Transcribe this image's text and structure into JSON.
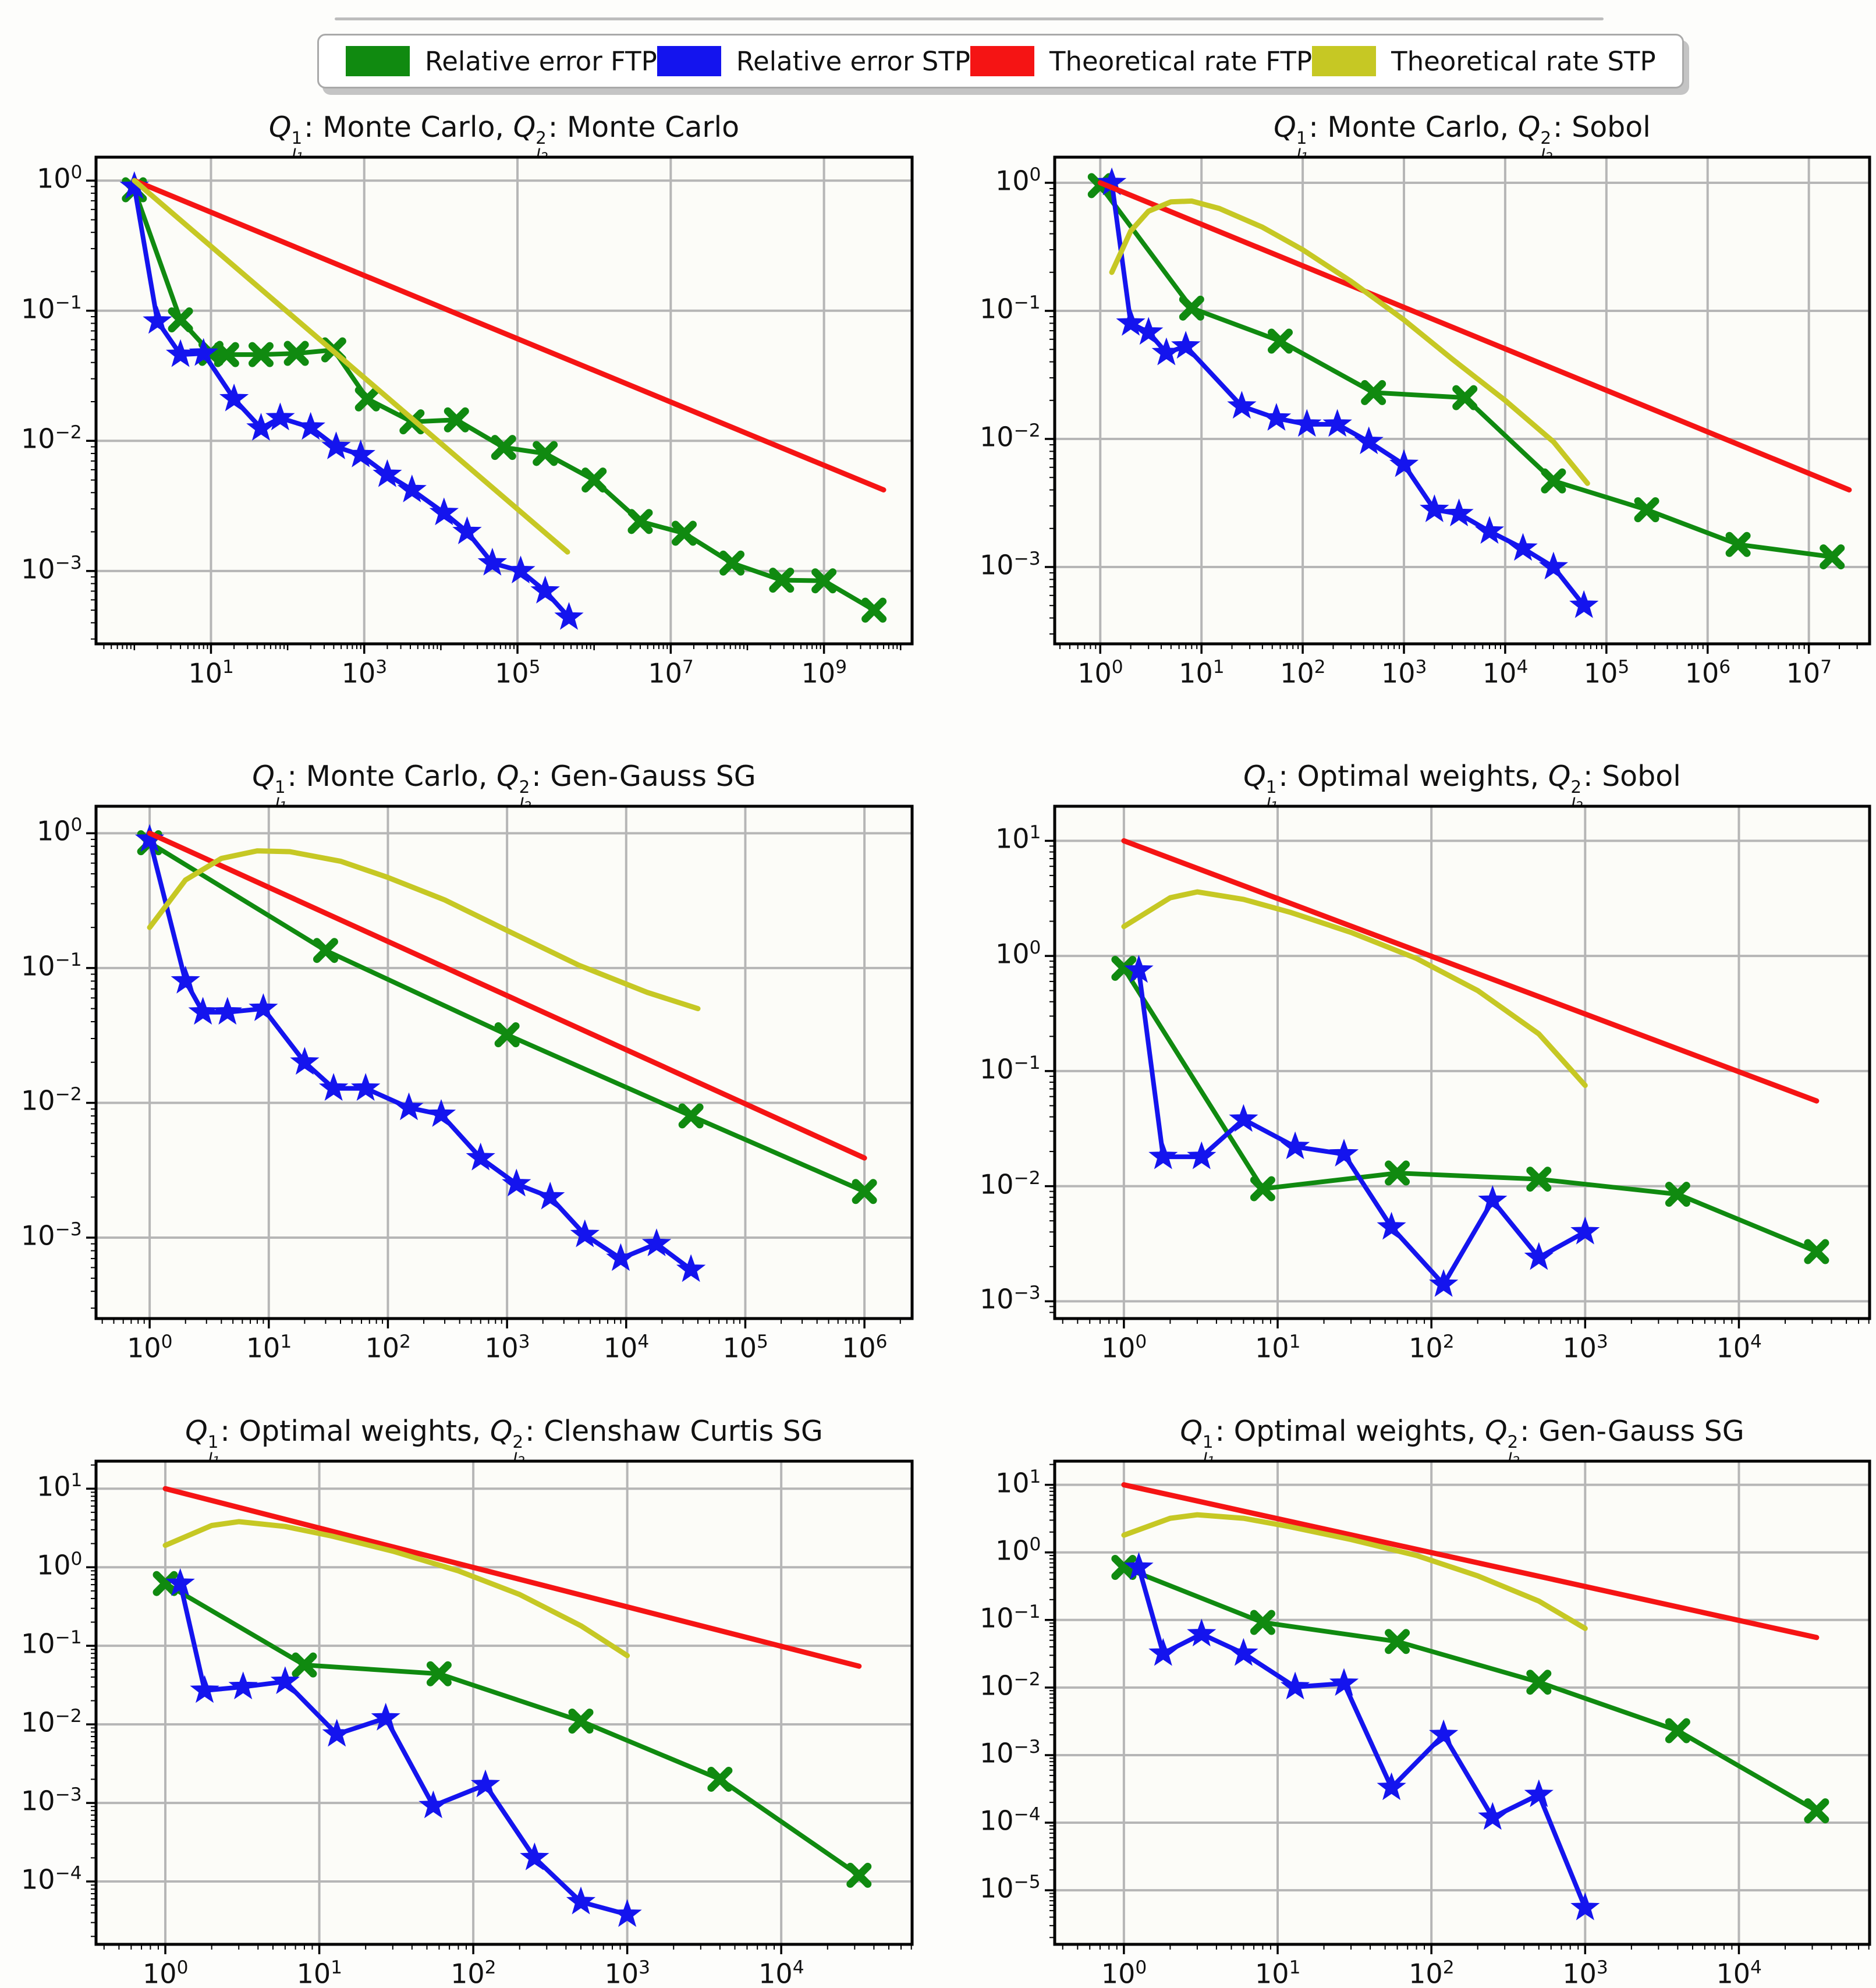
{
  "colors": {
    "green": "#108a10",
    "blue": "#1414ee",
    "red": "#f51414",
    "yellow": "#c6c824",
    "grid": "#b6b6b6",
    "frame": "#000000",
    "plot_bg": "#fcfcf8"
  },
  "legend": {
    "items": [
      {
        "label": "Relative error FTP",
        "color": "#108a10"
      },
      {
        "label": "Relative error STP",
        "color": "#1414ee"
      },
      {
        "label": "Theoretical rate FTP",
        "color": "#f51414"
      },
      {
        "label": "Theoretical rate STP",
        "color": "#c6c824"
      }
    ]
  },
  "chart_data": [
    {
      "type": "line",
      "title_plain": "Q^1_l1: Monte Carlo, Q^2_l2: Monte Carlo",
      "title_parts": [
        {
          "type": "qsym",
          "sup": "1",
          "sub": "l",
          "subidx": "1"
        },
        {
          "type": "text",
          "value": ": Monte Carlo, "
        },
        {
          "type": "qsym",
          "sup": "2",
          "sub": "l",
          "subidx": "2"
        },
        {
          "type": "text",
          "value": ": Monte Carlo"
        }
      ],
      "xlim_exp": [
        -0.5,
        10.15
      ],
      "ylim_exp": [
        -3.56,
        0.18
      ],
      "xticks_exp": [
        1,
        3,
        5,
        7,
        9
      ],
      "yticks_exp": [
        0,
        -1,
        -2,
        -3
      ],
      "grid": true,
      "legend_position": "figure-top",
      "series": [
        {
          "name": "Relative error FTP",
          "color_key": "green",
          "marker": "x",
          "x": [
            1,
            4,
            10,
            16,
            45,
            130,
            400,
            1100,
            4200,
            16000,
            66000,
            230000,
            1000000,
            4000000,
            15000000,
            63000000,
            280000000,
            1000000000,
            4500000000
          ],
          "y": [
            0.85,
            0.085,
            0.047,
            0.046,
            0.046,
            0.047,
            0.05,
            0.021,
            0.014,
            0.0145,
            0.0089,
            0.008,
            0.005,
            0.0024,
            0.00195,
            0.00115,
            0.00085,
            0.00084,
            0.0005
          ]
        },
        {
          "name": "Relative error STP",
          "color_key": "blue",
          "marker": "star",
          "x": [
            1,
            2,
            4,
            8,
            20,
            45,
            80,
            200,
            430,
            900,
            2000,
            4200,
            11000,
            22000,
            47000,
            110000,
            230000,
            470000
          ],
          "y": [
            0.9,
            0.083,
            0.046,
            0.047,
            0.021,
            0.0125,
            0.015,
            0.0127,
            0.009,
            0.0078,
            0.0055,
            0.0042,
            0.0028,
            0.002,
            0.00115,
            0.001,
            0.0007,
            0.00044
          ]
        },
        {
          "name": "Theoretical rate FTP",
          "color_key": "red",
          "marker": "none",
          "x": [
            1,
            6000000000
          ],
          "y": [
            1.0,
            0.0042
          ]
        },
        {
          "name": "Theoretical rate STP",
          "color_key": "yellow",
          "marker": "none",
          "x": [
            1,
            450000
          ],
          "y": [
            1.0,
            0.0014
          ]
        }
      ]
    },
    {
      "type": "line",
      "title_plain": "Q^1_l1: Monte Carlo, Q^2_l2: Sobol",
      "title_parts": [
        {
          "type": "qsym",
          "sup": "1",
          "sub": "l",
          "subidx": "1"
        },
        {
          "type": "text",
          "value": ": Monte Carlo, "
        },
        {
          "type": "qsym",
          "sup": "2",
          "sub": "l",
          "subidx": "2"
        },
        {
          "type": "text",
          "value": ": Sobol"
        }
      ],
      "xlim_exp": [
        -0.45,
        7.6
      ],
      "ylim_exp": [
        -3.6,
        0.2
      ],
      "xticks_exp": [
        0,
        1,
        2,
        3,
        4,
        5,
        6,
        7
      ],
      "yticks_exp": [
        0,
        -1,
        -2,
        -3
      ],
      "grid": true,
      "series": [
        {
          "name": "Relative error FTP",
          "color_key": "green",
          "marker": "x",
          "x": [
            1,
            8,
            60,
            500,
            4000,
            30000,
            250000,
            2000000,
            17000000
          ],
          "y": [
            0.95,
            0.105,
            0.058,
            0.023,
            0.021,
            0.0047,
            0.0028,
            0.0015,
            0.0012
          ]
        },
        {
          "name": "Relative error STP",
          "color_key": "blue",
          "marker": "star",
          "x": [
            1.3,
            2,
            3,
            4.5,
            7,
            25,
            55,
            110,
            220,
            450,
            1000,
            2000,
            3500,
            7000,
            15000,
            30000,
            60000
          ],
          "y": [
            1.0,
            0.08,
            0.068,
            0.047,
            0.053,
            0.018,
            0.0145,
            0.013,
            0.013,
            0.0095,
            0.0063,
            0.0028,
            0.0026,
            0.0019,
            0.0014,
            0.001,
            0.0005
          ]
        },
        {
          "name": "Theoretical rate FTP",
          "color_key": "red",
          "marker": "none",
          "x": [
            1,
            25000000
          ],
          "y": [
            1.0,
            0.004
          ]
        },
        {
          "name": "Theoretical rate STP",
          "color_key": "yellow",
          "marker": "none",
          "x": [
            1.3,
            2,
            3,
            5,
            8,
            15,
            40,
            100,
            300,
            1000,
            3000,
            10000,
            30000,
            65000
          ],
          "y": [
            0.2,
            0.42,
            0.6,
            0.71,
            0.72,
            0.63,
            0.45,
            0.3,
            0.17,
            0.085,
            0.042,
            0.02,
            0.0095,
            0.0045
          ]
        }
      ]
    },
    {
      "type": "line",
      "title_plain": "Q^1_l1: Monte Carlo, Q^2_l2: Gen-Gauss SG",
      "title_parts": [
        {
          "type": "qsym",
          "sup": "1",
          "sub": "l",
          "subidx": "1"
        },
        {
          "type": "text",
          "value": ": Monte Carlo, "
        },
        {
          "type": "qsym",
          "sup": "2",
          "sub": "l",
          "subidx": "2"
        },
        {
          "type": "text",
          "value": ": Gen-Gauss SG"
        }
      ],
      "xlim_exp": [
        -0.45,
        6.4
      ],
      "ylim_exp": [
        -3.6,
        0.2
      ],
      "xticks_exp": [
        0,
        1,
        2,
        3,
        4,
        5,
        6
      ],
      "yticks_exp": [
        0,
        -1,
        -2,
        -3
      ],
      "grid": true,
      "series": [
        {
          "name": "Relative error FTP",
          "color_key": "green",
          "marker": "x",
          "x": [
            1,
            30,
            1000,
            35000,
            1000000
          ],
          "y": [
            0.85,
            0.135,
            0.032,
            0.008,
            0.0022
          ]
        },
        {
          "name": "Relative error STP",
          "color_key": "blue",
          "marker": "star",
          "x": [
            1,
            2,
            2.8,
            4.5,
            9,
            20,
            35,
            65,
            150,
            280,
            600,
            1200,
            2300,
            4500,
            9000,
            18000,
            35000
          ],
          "y": [
            0.9,
            0.08,
            0.047,
            0.047,
            0.05,
            0.02,
            0.0128,
            0.0128,
            0.0092,
            0.0082,
            0.0039,
            0.0025,
            0.002,
            0.00105,
            0.0007,
            0.0009,
            0.00058
          ]
        },
        {
          "name": "Theoretical rate FTP",
          "color_key": "red",
          "marker": "none",
          "x": [
            1,
            1000000
          ],
          "y": [
            1.0,
            0.0039
          ]
        },
        {
          "name": "Theoretical rate STP",
          "color_key": "yellow",
          "marker": "none",
          "x": [
            1,
            2,
            4,
            8,
            15,
            40,
            100,
            300,
            1000,
            4000,
            15000,
            40000
          ],
          "y": [
            0.2,
            0.45,
            0.65,
            0.74,
            0.73,
            0.62,
            0.47,
            0.32,
            0.19,
            0.105,
            0.066,
            0.05
          ]
        }
      ]
    },
    {
      "type": "line",
      "title_plain": "Q^1_l1: Optimal weights, Q^2_l2: Sobol",
      "title_parts": [
        {
          "type": "qsym",
          "sup": "1",
          "sub": "l",
          "subidx": "1"
        },
        {
          "type": "text",
          "value": ": Optimal weights, "
        },
        {
          "type": "qsym",
          "sup": "2",
          "sub": "l",
          "subidx": "2"
        },
        {
          "type": "text",
          "value": ": Sobol"
        }
      ],
      "xlim_exp": [
        -0.45,
        4.85
      ],
      "ylim_exp": [
        -3.15,
        1.3
      ],
      "xticks_exp": [
        0,
        1,
        2,
        3,
        4
      ],
      "yticks_exp": [
        1,
        0,
        -1,
        -2,
        -3
      ],
      "grid": true,
      "series": [
        {
          "name": "Relative error FTP",
          "color_key": "green",
          "marker": "x",
          "x": [
            1,
            8,
            60,
            500,
            4000,
            32000
          ],
          "y": [
            0.78,
            0.0095,
            0.013,
            0.0115,
            0.0085,
            0.0027
          ]
        },
        {
          "name": "Relative error STP",
          "color_key": "blue",
          "marker": "star",
          "x": [
            1.25,
            1.8,
            3.2,
            6,
            13,
            27,
            55,
            120,
            250,
            500,
            1000
          ],
          "y": [
            0.75,
            0.018,
            0.018,
            0.038,
            0.022,
            0.019,
            0.0044,
            0.0014,
            0.0075,
            0.0024,
            0.004
          ]
        },
        {
          "name": "Theoretical rate FTP",
          "color_key": "red",
          "marker": "none",
          "x": [
            1,
            32000
          ],
          "y": [
            10,
            0.055
          ]
        },
        {
          "name": "Theoretical rate STP",
          "color_key": "yellow",
          "marker": "none",
          "x": [
            1,
            2,
            3,
            6,
            12,
            30,
            80,
            200,
            500,
            1000
          ],
          "y": [
            1.8,
            3.2,
            3.6,
            3.1,
            2.4,
            1.6,
            0.95,
            0.5,
            0.21,
            0.075
          ]
        }
      ]
    },
    {
      "type": "line",
      "title_plain": "Q^1_l1: Optimal weights, Q^2_l2: Clenshaw Curtis SG",
      "title_parts": [
        {
          "type": "qsym",
          "sup": "1",
          "sub": "l",
          "subidx": "1"
        },
        {
          "type": "text",
          "value": ": Optimal weights, "
        },
        {
          "type": "qsym",
          "sup": "2",
          "sub": "l",
          "subidx": "2"
        },
        {
          "type": "text",
          "value": ": Clenshaw Curtis SG"
        }
      ],
      "xlim_exp": [
        -0.45,
        4.85
      ],
      "ylim_exp": [
        -4.8,
        1.35
      ],
      "xticks_exp": [
        0,
        1,
        2,
        3,
        4
      ],
      "yticks_exp": [
        1,
        0,
        -1,
        -2,
        -3,
        -4
      ],
      "grid": true,
      "series": [
        {
          "name": "Relative error FTP",
          "color_key": "green",
          "marker": "x",
          "x": [
            1,
            8,
            60,
            500,
            4000,
            32000
          ],
          "y": [
            0.62,
            0.057,
            0.044,
            0.011,
            0.002,
            0.00012
          ]
        },
        {
          "name": "Relative error STP",
          "color_key": "blue",
          "marker": "star",
          "x": [
            1.25,
            1.8,
            3.2,
            6,
            13,
            27,
            55,
            120,
            250,
            500,
            1000
          ],
          "y": [
            0.62,
            0.027,
            0.03,
            0.035,
            0.0075,
            0.012,
            0.00092,
            0.0017,
            0.0002,
            5.5e-05,
            3.8e-05
          ]
        },
        {
          "name": "Theoretical rate FTP",
          "color_key": "red",
          "marker": "none",
          "x": [
            1,
            32000
          ],
          "y": [
            10,
            0.055
          ]
        },
        {
          "name": "Theoretical rate STP",
          "color_key": "yellow",
          "marker": "none",
          "x": [
            1,
            2,
            3,
            6,
            12,
            30,
            80,
            200,
            500,
            1000
          ],
          "y": [
            1.9,
            3.4,
            3.8,
            3.3,
            2.5,
            1.6,
            0.9,
            0.45,
            0.18,
            0.075
          ]
        }
      ]
    },
    {
      "type": "line",
      "title_plain": "Q^1_l1: Optimal weights, Q^2_l2: Gen-Gauss SG",
      "title_parts": [
        {
          "type": "qsym",
          "sup": "1",
          "sub": "l",
          "subidx": "1"
        },
        {
          "type": "text",
          "value": ": Optimal weights, "
        },
        {
          "type": "qsym",
          "sup": "2",
          "sub": "l",
          "subidx": "2"
        },
        {
          "type": "text",
          "value": ": Gen-Gauss SG"
        }
      ],
      "xlim_exp": [
        -0.45,
        4.85
      ],
      "ylim_exp": [
        -5.8,
        1.35
      ],
      "xticks_exp": [
        0,
        1,
        2,
        3,
        4
      ],
      "yticks_exp": [
        1,
        0,
        -1,
        -2,
        -3,
        -4,
        -5
      ],
      "grid": true,
      "series": [
        {
          "name": "Relative error FTP",
          "color_key": "green",
          "marker": "x",
          "x": [
            1,
            8,
            60,
            500,
            4000,
            32000
          ],
          "y": [
            0.6,
            0.092,
            0.048,
            0.012,
            0.0023,
            0.00015
          ]
        },
        {
          "name": "Relative error STP",
          "color_key": "blue",
          "marker": "star",
          "x": [
            1.25,
            1.8,
            3.2,
            6,
            13,
            27,
            55,
            120,
            250,
            500,
            1000
          ],
          "y": [
            0.6,
            0.032,
            0.062,
            0.032,
            0.0102,
            0.0115,
            0.00033,
            0.002,
            0.00012,
            0.00026,
            5.5e-06
          ]
        },
        {
          "name": "Theoretical rate FTP",
          "color_key": "red",
          "marker": "none",
          "x": [
            1,
            32000
          ],
          "y": [
            10,
            0.055
          ]
        },
        {
          "name": "Theoretical rate STP",
          "color_key": "yellow",
          "marker": "none",
          "x": [
            1,
            2,
            3,
            6,
            12,
            30,
            80,
            200,
            500,
            1000
          ],
          "y": [
            1.8,
            3.2,
            3.6,
            3.2,
            2.4,
            1.55,
            0.9,
            0.45,
            0.19,
            0.075
          ]
        }
      ]
    }
  ]
}
